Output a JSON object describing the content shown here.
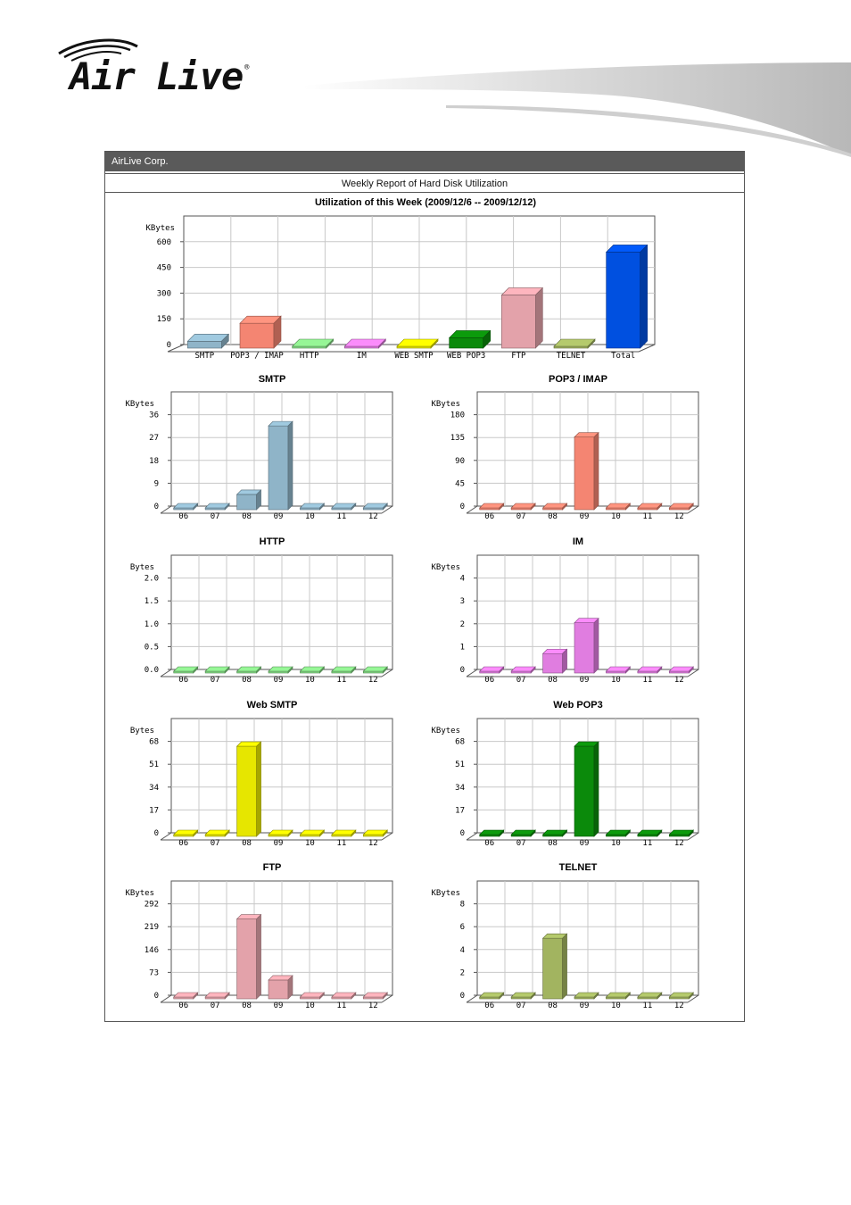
{
  "logo": {
    "text": "Air Live",
    "registered": "®"
  },
  "report": {
    "company": "AirLive Corp.",
    "title": "Weekly Report of Hard Disk Utilization"
  },
  "colors": {
    "smtp": "#8fb4c8",
    "pop3": "#f48572",
    "http": "#86dc86",
    "im": "#e07de0",
    "websmtp": "#e6e600",
    "webpop3": "#0b8a0b",
    "ftp": "#e3a2aa",
    "telnet": "#a2b460",
    "total": "#0050e0"
  },
  "chart_data": [
    {
      "id": "summary",
      "type": "bar",
      "title": "Utilization of this Week (2009/12/6 -- 2009/12/12)",
      "ylabel": "KBytes",
      "yticks": [
        "0",
        "150",
        "300",
        "450",
        "600"
      ],
      "ylim": [
        0,
        750
      ],
      "categories": [
        "SMTP",
        "POP3 / IMAP",
        "HTTP",
        "IM",
        "WEB SMTP",
        "WEB POP3",
        "FTP",
        "TELNET",
        "Total"
      ],
      "values": [
        40,
        145,
        0,
        3,
        0.06,
        60,
        310,
        5,
        560
      ],
      "colorKeys": [
        "smtp",
        "pop3",
        "http",
        "im",
        "websmtp",
        "webpop3",
        "ftp",
        "telnet",
        "total"
      ]
    },
    {
      "id": "smtp",
      "type": "bar",
      "title": "SMTP",
      "ylabel": "KBytes",
      "color": "smtp",
      "yticks": [
        "0",
        "9",
        "18",
        "27",
        "36"
      ],
      "ylim": [
        0,
        45
      ],
      "categories": [
        "06",
        "07",
        "08",
        "09",
        "10",
        "11",
        "12"
      ],
      "values": [
        0,
        0,
        6,
        33,
        0,
        0,
        0
      ]
    },
    {
      "id": "pop3",
      "type": "bar",
      "title": "POP3 / IMAP",
      "ylabel": "KBytes",
      "color": "pop3",
      "yticks": [
        "0",
        "45",
        "90",
        "135",
        "180"
      ],
      "ylim": [
        0,
        225
      ],
      "categories": [
        "06",
        "07",
        "08",
        "09",
        "10",
        "11",
        "12"
      ],
      "values": [
        0,
        0,
        0,
        143,
        0,
        0,
        0
      ]
    },
    {
      "id": "http",
      "type": "bar",
      "title": "HTTP",
      "ylabel": "Bytes",
      "color": "http",
      "yticks": [
        "0.0",
        "0.5",
        "1.0",
        "1.5",
        "2.0"
      ],
      "ylim": [
        0,
        2.5
      ],
      "categories": [
        "06",
        "07",
        "08",
        "09",
        "10",
        "11",
        "12"
      ],
      "values": [
        0,
        0,
        0,
        0,
        0,
        0,
        0
      ]
    },
    {
      "id": "im",
      "type": "bar",
      "title": "IM",
      "ylabel": "KBytes",
      "color": "im",
      "yticks": [
        "0",
        "1",
        "2",
        "3",
        "4"
      ],
      "ylim": [
        0,
        5
      ],
      "categories": [
        "06",
        "07",
        "08",
        "09",
        "10",
        "11",
        "12"
      ],
      "values": [
        0,
        0,
        0.85,
        2.2,
        0,
        0,
        0
      ]
    },
    {
      "id": "websmtp",
      "type": "bar",
      "title": "Web SMTP",
      "ylabel": "Bytes",
      "color": "websmtp",
      "yticks": [
        "0",
        "17",
        "34",
        "51",
        "68"
      ],
      "ylim": [
        0,
        85
      ],
      "categories": [
        "06",
        "07",
        "08",
        "09",
        "10",
        "11",
        "12"
      ],
      "values": [
        0,
        0,
        67,
        0,
        0,
        0,
        0
      ]
    },
    {
      "id": "webpop3",
      "type": "bar",
      "title": "Web POP3",
      "ylabel": "KBytes",
      "color": "webpop3",
      "yticks": [
        "0",
        "17",
        "34",
        "51",
        "68"
      ],
      "ylim": [
        0,
        85
      ],
      "categories": [
        "06",
        "07",
        "08",
        "09",
        "10",
        "11",
        "12"
      ],
      "values": [
        0,
        0,
        0,
        67,
        0,
        0,
        0
      ]
    },
    {
      "id": "ftp",
      "type": "bar",
      "title": "FTP",
      "ylabel": "KBytes",
      "color": "ftp",
      "yticks": [
        "0",
        "73",
        "146",
        "219",
        "292"
      ],
      "ylim": [
        0,
        365
      ],
      "categories": [
        "06",
        "07",
        "08",
        "09",
        "10",
        "11",
        "12"
      ],
      "values": [
        0,
        0,
        255,
        60,
        0,
        0,
        0
      ]
    },
    {
      "id": "telnet",
      "type": "bar",
      "title": "TELNET",
      "ylabel": "KBytes",
      "color": "telnet",
      "yticks": [
        "0",
        "2",
        "4",
        "6",
        "8"
      ],
      "ylim": [
        0,
        10
      ],
      "categories": [
        "06",
        "07",
        "08",
        "09",
        "10",
        "11",
        "12"
      ],
      "values": [
        0,
        0,
        5.3,
        0,
        0,
        0,
        0
      ]
    }
  ]
}
